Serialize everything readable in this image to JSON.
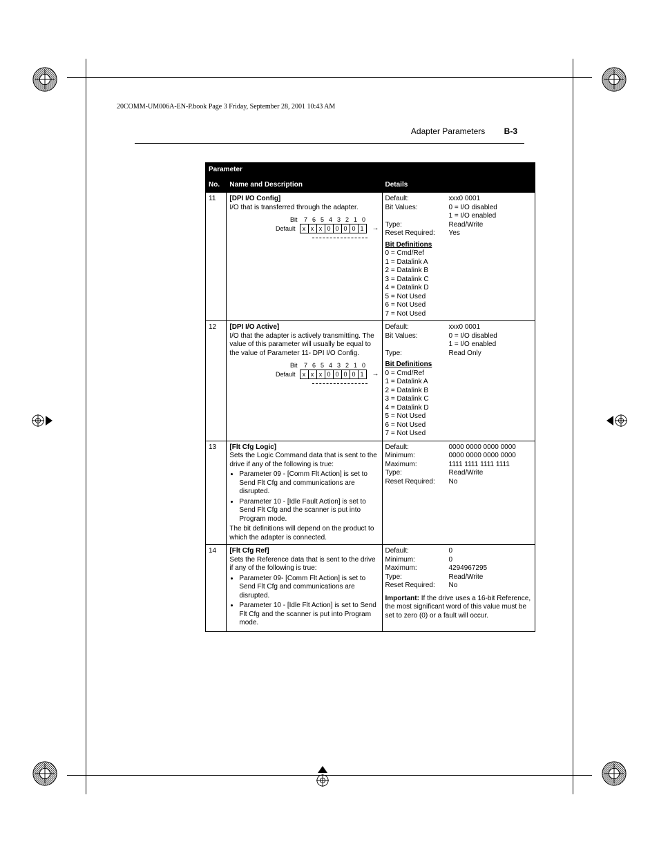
{
  "runhead": "20COMM-UM006A-EN-P.book  Page 3  Friday, September 28, 2001  10:43 AM",
  "header": {
    "title": "Adapter Parameters",
    "page": "B-3"
  },
  "thead": {
    "param": "Parameter",
    "no": "No.",
    "name": "Name and Description",
    "details": "Details"
  },
  "bit_header_label": "Bit",
  "bit_default_label": "Default",
  "bit_nums": [
    "7",
    "6",
    "5",
    "4",
    "3",
    "2",
    "1",
    "0"
  ],
  "bit_cells": [
    "x",
    "x",
    "x",
    "0",
    "0",
    "0",
    "0",
    "1"
  ],
  "bitdefs_title": "Bit Definitions",
  "bitdefs": [
    "0 = Cmd/Ref",
    "1 = Datalink A",
    "2 = Datalink B",
    "3 = Datalink C",
    "4 = Datalink D",
    "5 = Not Used",
    "6 = Not Used",
    "7 = Not Used"
  ],
  "rows": [
    {
      "no": "11",
      "name": "[DPI I/O Config]",
      "desc": "I/O that is transferred through the adapter.",
      "show_bits": true,
      "kv": [
        {
          "k": "Default:",
          "v": "xxx0 0001"
        },
        {
          "k": "Bit Values:",
          "v": "0 = I/O disabled"
        },
        {
          "k": "",
          "v": "1 = I/O enabled"
        },
        {
          "k": "Type:",
          "v": "Read/Write"
        },
        {
          "k": "Reset Required:",
          "v": "Yes"
        }
      ],
      "show_bitdefs": true
    },
    {
      "no": "12",
      "name": "[DPI I/O Active]",
      "desc": "I/O that the adapter is actively transmitting. The value of this parameter will usually be equal to the value of Parameter 11- DPI I/O Config.",
      "show_bits": true,
      "kv": [
        {
          "k": "Default:",
          "v": "xxx0 0001"
        },
        {
          "k": "Bit Values:",
          "v": "0 = I/O disabled"
        },
        {
          "k": "",
          "v": "1 = I/O enabled"
        },
        {
          "k": "Type:",
          "v": "Read Only"
        }
      ],
      "show_bitdefs": true
    },
    {
      "no": "13",
      "name": "[Flt Cfg Logic]",
      "desc": "Sets the Logic Command data that is sent to the drive if any of the following is true:",
      "bullets": [
        "Parameter 09 - [Comm Flt Action] is set to Send Flt Cfg and communications are disrupted.",
        "Parameter 10 - [Idle Fault Action] is set to Send Flt Cfg and the scanner is put into Program mode."
      ],
      "desc_after": "The bit definitions will depend on the product to which the adapter is connected.",
      "kv": [
        {
          "k": "Default:",
          "v": "0000 0000 0000 0000"
        },
        {
          "k": "Minimum:",
          "v": "0000 0000 0000 0000"
        },
        {
          "k": "Maximum:",
          "v": "1111 1111 1111 1111"
        },
        {
          "k": "Type:",
          "v": "Read/Write"
        },
        {
          "k": "Reset Required:",
          "v": "No"
        }
      ]
    },
    {
      "no": "14",
      "name": "[Flt Cfg Ref]",
      "desc": "Sets the Reference data that is sent to the drive if any of the following is true:",
      "bullets": [
        "Parameter 09- [Comm Flt Action] is set to Send Flt Cfg and communications are disrupted.",
        "Parameter 10 - [Idle Flt Action] is set to Send Flt Cfg and the scanner is put into Program mode."
      ],
      "kv": [
        {
          "k": "Default:",
          "v": "0"
        },
        {
          "k": "Minimum:",
          "v": "0"
        },
        {
          "k": "Maximum:",
          "v": "4294967295"
        },
        {
          "k": "Type:",
          "v": "Read/Write"
        },
        {
          "k": "Reset Required:",
          "v": "No"
        }
      ],
      "note_bold": "Important:",
      "note": " If the drive uses a 16-bit Reference, the most significant word of this value must be set to zero (0) or a fault will occur."
    }
  ]
}
